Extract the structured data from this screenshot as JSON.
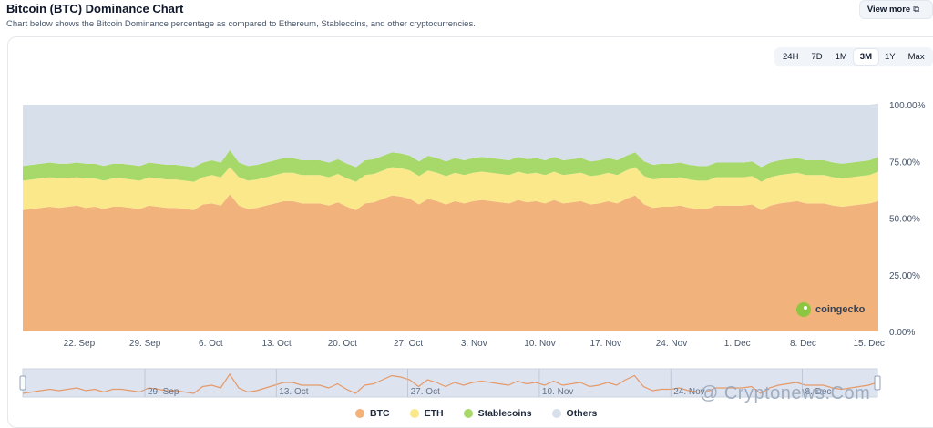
{
  "header": {
    "title": "Bitcoin (BTC) Dominance Chart",
    "subtitle": "Chart below shows the Bitcoin Dominance percentage as compared to Ethereum, Stablecoins, and other cryptocurrencies.",
    "view_more_label": "View more"
  },
  "range_tabs": [
    {
      "label": "24H",
      "active": false
    },
    {
      "label": "7D",
      "active": false
    },
    {
      "label": "1M",
      "active": false
    },
    {
      "label": "3M",
      "active": true
    },
    {
      "label": "1Y",
      "active": false
    },
    {
      "label": "Max",
      "active": false
    }
  ],
  "logo_text": "coingecko",
  "watermark": "@ Cryptonews.Com",
  "colors": {
    "btc": "#f2b27b",
    "eth": "#fbe88b",
    "stablecoins": "#a6d96a",
    "others": "#d7e0ea",
    "navigator_bg": "#dde3ef",
    "navigator_line": "#e59a6a"
  },
  "chart_data": {
    "type": "area",
    "stacked": true,
    "y_axis": {
      "min": 0,
      "max": 100,
      "ticks": [
        "0.00%",
        "25.00%",
        "50.00%",
        "75.00%",
        "100.00%"
      ],
      "position": "right"
    },
    "x_tick_labels": [
      "22. Sep",
      "29. Sep",
      "6. Oct",
      "13. Oct",
      "20. Oct",
      "27. Oct",
      "3. Nov",
      "10. Nov",
      "17. Nov",
      "24. Nov",
      "1. Dec",
      "8. Dec",
      "15. Dec"
    ],
    "navigator_labels": [
      "29. Sep",
      "13. Oct",
      "27. Oct",
      "10. Nov",
      "24. Nov",
      "8. Dec"
    ],
    "x_start": "2024-09-16",
    "x_end": "2024-12-16",
    "series": [
      {
        "name": "BTC",
        "values": [
          53.5,
          54.0,
          54.5,
          55.0,
          54.5,
          55.0,
          55.5,
          54.5,
          55.0,
          54.0,
          55.0,
          55.0,
          54.5,
          54.0,
          55.5,
          55.0,
          54.5,
          54.5,
          54.0,
          53.5,
          56.0,
          56.5,
          55.5,
          60.5,
          55.5,
          54.0,
          54.5,
          55.5,
          56.5,
          57.5,
          57.5,
          56.5,
          56.5,
          56.5,
          55.5,
          57.0,
          55.0,
          53.5,
          56.5,
          57.0,
          58.5,
          60.0,
          59.5,
          58.5,
          56.0,
          58.5,
          57.5,
          56.0,
          57.5,
          56.5,
          57.5,
          58.0,
          57.5,
          57.0,
          56.5,
          58.0,
          57.0,
          57.5,
          56.5,
          58.0,
          56.5,
          57.0,
          57.5,
          56.0,
          56.5,
          57.5,
          56.5,
          58.5,
          60.0,
          56.0,
          54.5,
          55.0,
          55.0,
          55.5,
          54.5,
          54.0,
          54.0,
          55.5,
          55.5,
          55.5,
          55.5,
          56.0,
          53.5,
          55.5,
          56.5,
          57.0,
          57.5,
          56.5,
          56.5,
          56.5,
          55.5,
          55.0,
          55.5,
          56.0,
          56.5,
          57.5
        ]
      },
      {
        "name": "ETH",
        "values": [
          13.0,
          13.0,
          13.0,
          13.0,
          13.0,
          12.5,
          12.5,
          13.0,
          12.5,
          12.5,
          12.5,
          12.5,
          12.5,
          12.5,
          12.5,
          12.5,
          12.5,
          12.5,
          12.5,
          12.5,
          12.0,
          12.5,
          12.5,
          12.0,
          12.5,
          12.5,
          12.5,
          12.5,
          12.5,
          12.5,
          12.5,
          12.5,
          12.5,
          12.5,
          12.5,
          12.5,
          12.5,
          12.5,
          12.5,
          12.5,
          12.5,
          12.5,
          12.5,
          12.5,
          12.5,
          12.5,
          12.5,
          12.5,
          12.5,
          12.5,
          12.5,
          12.5,
          12.5,
          12.5,
          12.5,
          12.5,
          12.5,
          12.5,
          12.5,
          12.5,
          12.5,
          12.5,
          12.5,
          12.5,
          12.5,
          12.5,
          12.5,
          12.5,
          12.5,
          12.5,
          12.5,
          12.5,
          12.5,
          12.5,
          12.5,
          12.5,
          12.5,
          12.5,
          12.5,
          12.5,
          12.5,
          12.5,
          12.5,
          12.5,
          12.5,
          12.5,
          12.5,
          12.5,
          12.5,
          12.5,
          12.5,
          12.5,
          12.5,
          12.5,
          12.5,
          13.0
        ]
      },
      {
        "name": "Stablecoins",
        "values": [
          6.5,
          6.5,
          6.5,
          6.5,
          6.5,
          6.5,
          6.5,
          6.5,
          6.5,
          6.5,
          6.5,
          6.5,
          6.5,
          6.5,
          6.5,
          6.5,
          6.5,
          6.5,
          6.5,
          6.5,
          6.5,
          6.5,
          6.5,
          7.5,
          6.5,
          6.5,
          6.5,
          6.5,
          6.5,
          6.5,
          6.5,
          6.5,
          6.5,
          6.5,
          6.5,
          6.5,
          6.5,
          6.5,
          6.5,
          6.5,
          6.5,
          6.5,
          6.5,
          6.5,
          6.5,
          6.5,
          6.5,
          6.5,
          6.5,
          6.5,
          6.5,
          6.5,
          6.5,
          6.5,
          6.5,
          6.5,
          6.5,
          6.5,
          6.5,
          6.5,
          6.5,
          6.5,
          6.5,
          6.5,
          6.5,
          6.5,
          6.5,
          6.5,
          6.5,
          6.5,
          6.5,
          6.5,
          6.5,
          6.5,
          6.5,
          6.5,
          6.5,
          6.5,
          6.5,
          6.5,
          6.5,
          6.5,
          6.5,
          6.5,
          6.5,
          6.5,
          6.5,
          6.5,
          6.5,
          6.5,
          6.5,
          6.5,
          6.5,
          6.5,
          6.5,
          6.5
        ]
      },
      {
        "name": "Others",
        "values": [
          27.0,
          26.5,
          26.0,
          25.5,
          26.0,
          26.0,
          25.5,
          26.0,
          26.0,
          27.0,
          26.0,
          26.0,
          26.5,
          27.0,
          25.5,
          26.0,
          26.5,
          26.5,
          27.0,
          27.5,
          25.5,
          24.5,
          25.5,
          20.0,
          25.5,
          27.0,
          26.5,
          25.5,
          24.5,
          23.5,
          23.5,
          24.5,
          24.5,
          24.5,
          25.5,
          24.0,
          26.0,
          27.5,
          24.5,
          24.0,
          22.5,
          21.0,
          21.5,
          22.5,
          25.0,
          22.5,
          23.5,
          25.0,
          23.5,
          24.5,
          23.5,
          23.0,
          23.5,
          24.0,
          24.5,
          23.0,
          24.0,
          23.5,
          24.5,
          23.0,
          24.5,
          24.0,
          23.5,
          25.0,
          24.5,
          23.5,
          24.5,
          22.5,
          21.0,
          25.0,
          26.5,
          26.0,
          26.0,
          25.5,
          26.5,
          27.0,
          27.0,
          25.5,
          25.5,
          25.5,
          25.5,
          25.0,
          27.5,
          25.5,
          24.5,
          24.0,
          23.5,
          24.5,
          24.5,
          24.5,
          25.5,
          26.0,
          25.5,
          25.0,
          24.5,
          23.5
        ]
      }
    ],
    "legend": [
      {
        "label": "BTC",
        "color": "#f2b27b"
      },
      {
        "label": "ETH",
        "color": "#fbe88b"
      },
      {
        "label": "Stablecoins",
        "color": "#a6d96a"
      },
      {
        "label": "Others",
        "color": "#d7e0ea"
      }
    ],
    "legend_position": "bottom"
  }
}
